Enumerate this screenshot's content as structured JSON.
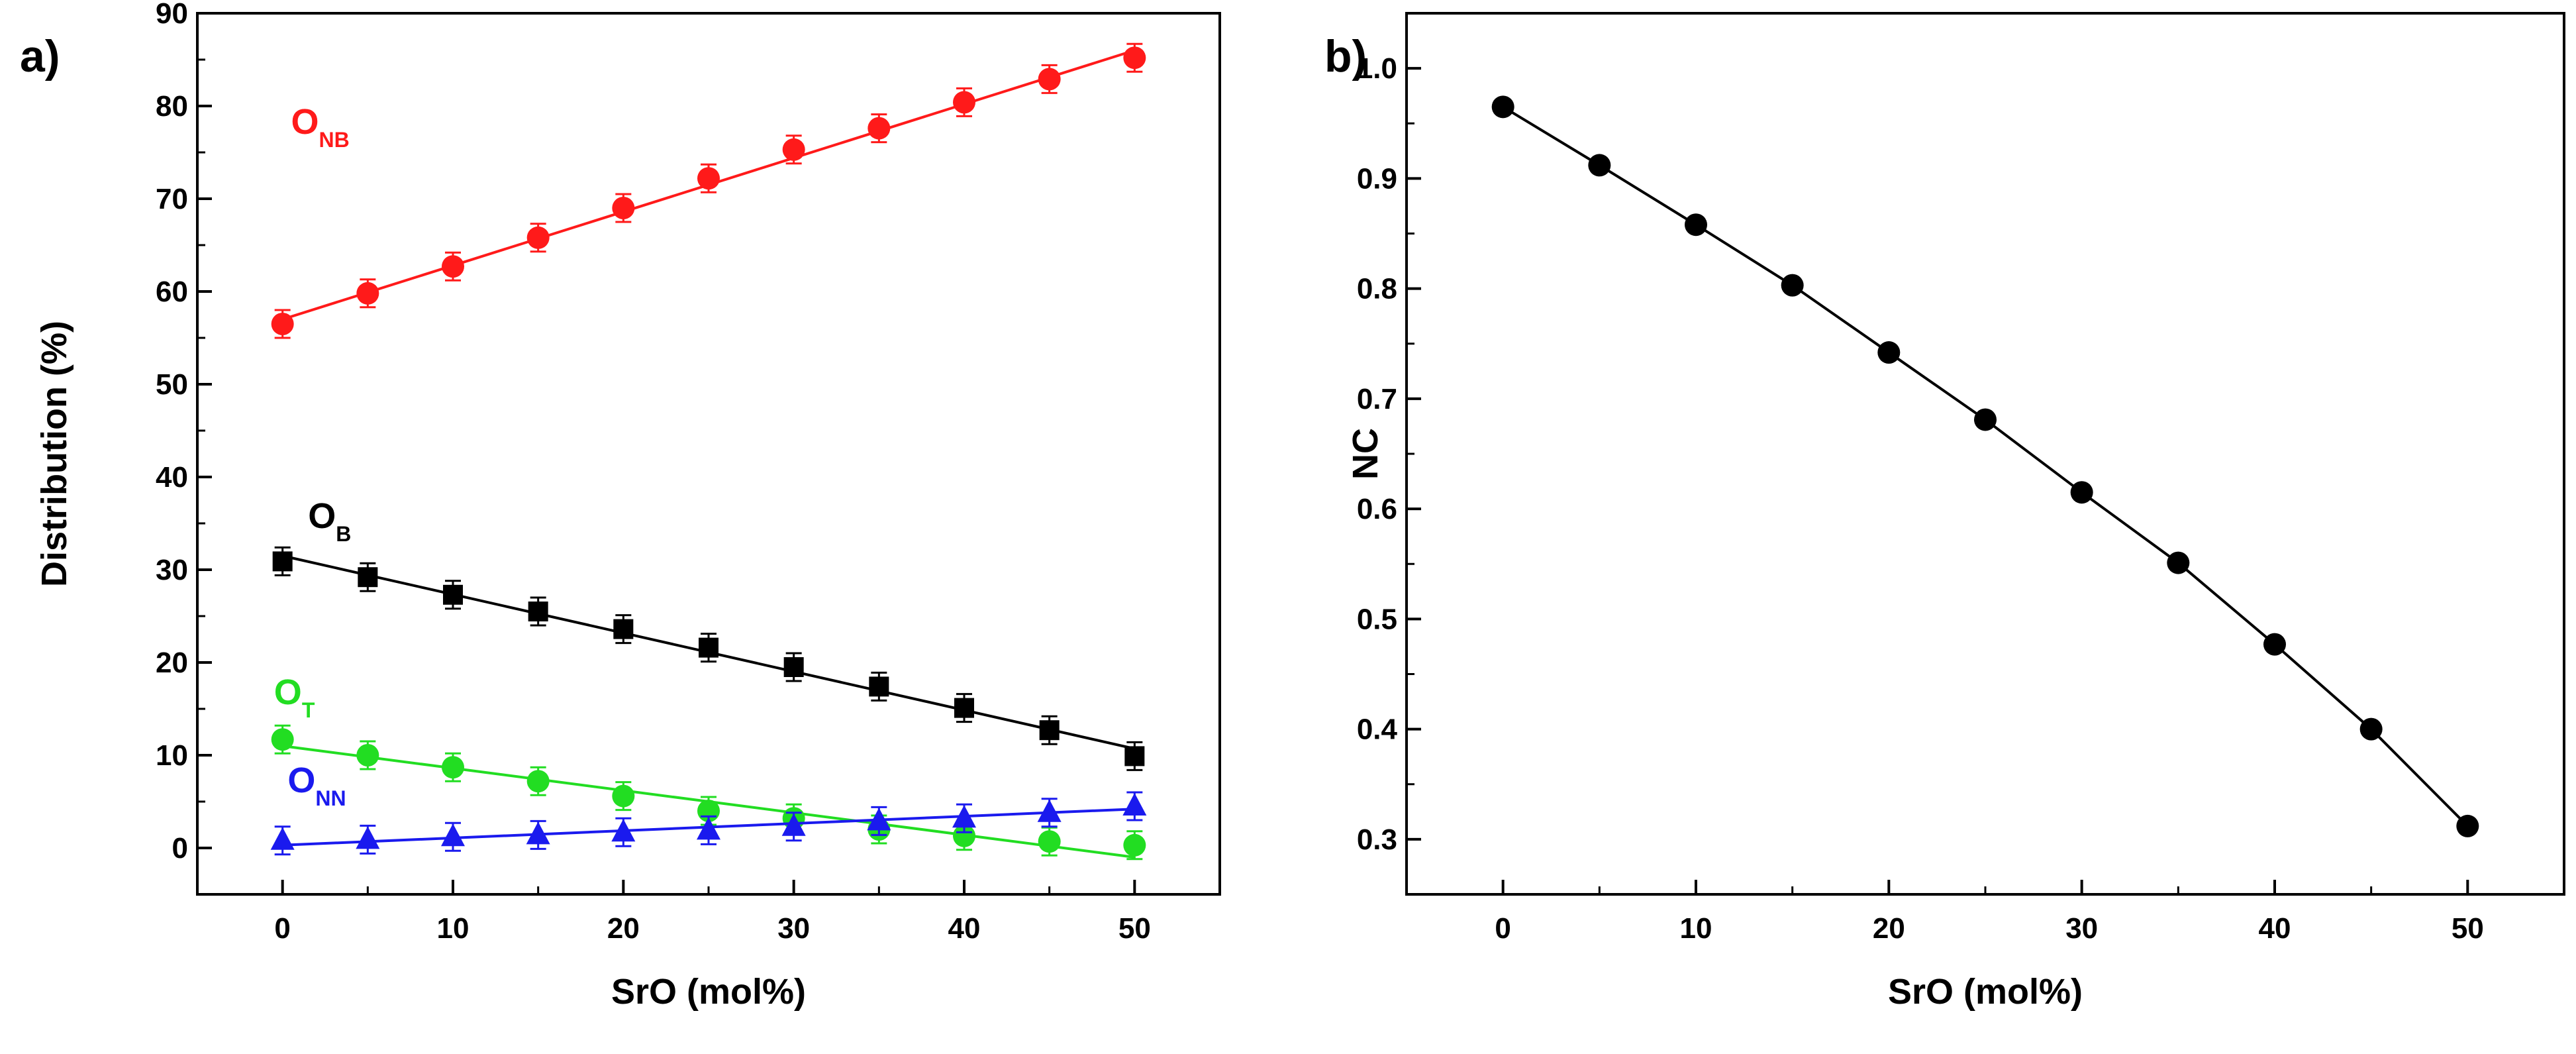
{
  "chart_data": [
    {
      "type": "scatter",
      "panel_label": "a)",
      "xlabel": "SrO (mol%)",
      "ylabel": "Distribution (%)",
      "xlim": [
        -5,
        55
      ],
      "ylim": [
        -5,
        90
      ],
      "xticks": [
        "0",
        "10",
        "20",
        "30",
        "40",
        "50"
      ],
      "yticks": [
        "0",
        "10",
        "20",
        "30",
        "40",
        "50",
        "60",
        "70",
        "80",
        "90"
      ],
      "x": [
        0,
        5,
        10,
        15,
        20,
        25,
        30,
        35,
        40,
        45,
        50
      ],
      "series": [
        {
          "name": "O_NB",
          "main": "O",
          "sub": "NB",
          "color": "#ff1a1a",
          "marker": "circle",
          "values": [
            56.5,
            59.8,
            62.7,
            65.8,
            69.0,
            72.2,
            75.3,
            77.6,
            80.4,
            82.9,
            85.2
          ],
          "errors": [
            1.5,
            1.5,
            1.5,
            1.5,
            1.5,
            1.5,
            1.5,
            1.5,
            1.5,
            1.5,
            1.5
          ],
          "fit": [
            [
              0,
              57.0
            ],
            [
              50,
              86.0
            ]
          ],
          "label_at": [
            0.5,
            77
          ]
        },
        {
          "name": "O_B",
          "main": "O",
          "sub": "B",
          "color": "#000000",
          "marker": "square",
          "values": [
            30.9,
            29.2,
            27.3,
            25.5,
            23.6,
            21.6,
            19.5,
            17.4,
            15.1,
            12.7,
            9.9
          ],
          "errors": [
            1.5,
            1.5,
            1.5,
            1.5,
            1.5,
            1.5,
            1.5,
            1.5,
            1.5,
            1.5,
            1.5
          ],
          "fit": [
            [
              0,
              31.5
            ],
            [
              50,
              10.7
            ]
          ],
          "label_at": [
            1.5,
            34.5
          ]
        },
        {
          "name": "O_T",
          "main": "O",
          "sub": "T",
          "color": "#22dd22",
          "marker": "circle",
          "values": [
            11.7,
            10.0,
            8.7,
            7.2,
            5.6,
            4.0,
            3.2,
            2.0,
            1.3,
            0.7,
            0.3
          ],
          "errors": [
            1.5,
            1.5,
            1.5,
            1.5,
            1.5,
            1.5,
            1.5,
            1.5,
            1.5,
            1.5,
            1.5
          ],
          "fit": [
            [
              0,
              11.0
            ],
            [
              50,
              -1.0
            ]
          ],
          "label_at": [
            -0.5,
            15.5
          ]
        },
        {
          "name": "O_NN",
          "main": "O",
          "sub": "NN",
          "color": "#1a1aee",
          "marker": "triangle",
          "values": [
            0.8,
            0.9,
            1.2,
            1.4,
            1.7,
            1.9,
            2.3,
            2.9,
            3.2,
            3.8,
            4.5
          ],
          "errors": [
            1.5,
            1.5,
            1.5,
            1.5,
            1.5,
            1.5,
            1.5,
            1.5,
            1.5,
            1.5,
            1.5
          ],
          "fit": [
            [
              0,
              0.3
            ],
            [
              50,
              4.2
            ]
          ],
          "label_at": [
            0.3,
            6
          ]
        }
      ]
    },
    {
      "type": "line",
      "panel_label": "b)",
      "xlabel": "SrO (mol%)",
      "ylabel": "NC",
      "xlim": [
        -5,
        55
      ],
      "ylim": [
        0.25,
        1.05
      ],
      "xticks": [
        "0",
        "10",
        "20",
        "30",
        "40",
        "50"
      ],
      "yticks": [
        "0.3",
        "0.4",
        "0.5",
        "0.6",
        "0.7",
        "0.8",
        "0.9",
        "1.0"
      ],
      "x": [
        0,
        5,
        10,
        15,
        20,
        25,
        30,
        35,
        40,
        45,
        50
      ],
      "series": [
        {
          "name": "NC",
          "color": "#000000",
          "marker": "circle",
          "values": [
            0.965,
            0.912,
            0.858,
            0.803,
            0.742,
            0.681,
            0.615,
            0.551,
            0.477,
            0.4,
            0.312
          ]
        }
      ]
    }
  ]
}
